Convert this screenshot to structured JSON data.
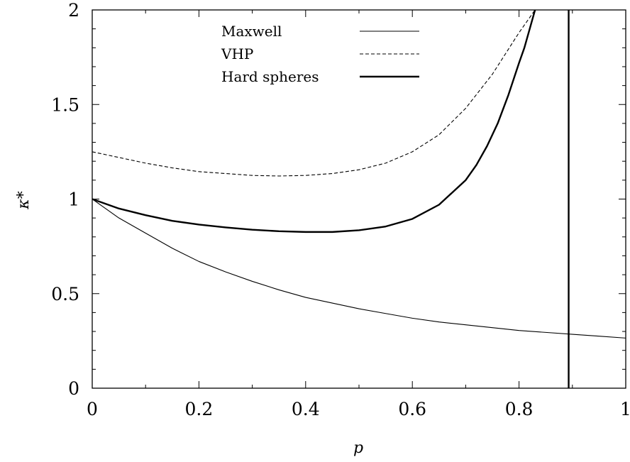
{
  "chart_data": {
    "type": "line",
    "title": "",
    "xlabel": "p",
    "ylabel": "κ*",
    "xlim": [
      0,
      1
    ],
    "ylim": [
      0,
      2
    ],
    "x_ticks": [
      "0",
      "0.2",
      "0.4",
      "0.6",
      "0.8",
      "1"
    ],
    "y_ticks": [
      "0",
      "0.5",
      "1",
      "1.5",
      "2"
    ],
    "x_tick_values": [
      0,
      0.2,
      0.4,
      0.6,
      0.8,
      1
    ],
    "y_tick_values": [
      0,
      0.5,
      1,
      1.5,
      2
    ],
    "legend_position": "top-center",
    "grid": false,
    "series": [
      {
        "name": "Maxwell",
        "style": "solid-thin",
        "color": "#000000",
        "x": [
          0,
          0.02,
          0.05,
          0.1,
          0.15,
          0.2,
          0.25,
          0.3,
          0.35,
          0.4,
          0.45,
          0.5,
          0.55,
          0.6,
          0.65,
          0.7,
          0.75,
          0.8,
          0.85,
          0.9,
          0.95,
          1.0
        ],
        "y": [
          1.0,
          0.96,
          0.9,
          0.82,
          0.74,
          0.67,
          0.615,
          0.565,
          0.52,
          0.48,
          0.45,
          0.42,
          0.395,
          0.37,
          0.35,
          0.335,
          0.32,
          0.305,
          0.295,
          0.285,
          0.275,
          0.265
        ]
      },
      {
        "name": "VHP",
        "style": "dashed",
        "color": "#000000",
        "x": [
          0,
          0.05,
          0.1,
          0.15,
          0.2,
          0.25,
          0.3,
          0.35,
          0.4,
          0.45,
          0.5,
          0.55,
          0.6,
          0.65,
          0.7,
          0.75,
          0.8,
          0.83
        ],
        "y": [
          1.25,
          1.22,
          1.19,
          1.165,
          1.145,
          1.135,
          1.125,
          1.122,
          1.125,
          1.135,
          1.155,
          1.19,
          1.25,
          1.34,
          1.48,
          1.66,
          1.88,
          2.0
        ]
      },
      {
        "name": "Hard spheres",
        "style": "solid-thick",
        "color": "#000000",
        "x": [
          0,
          0.05,
          0.1,
          0.15,
          0.2,
          0.25,
          0.3,
          0.35,
          0.4,
          0.45,
          0.5,
          0.55,
          0.6,
          0.65,
          0.7,
          0.72,
          0.74,
          0.76,
          0.78,
          0.8,
          0.81,
          0.82,
          0.83
        ],
        "y": [
          1.0,
          0.95,
          0.915,
          0.885,
          0.865,
          0.85,
          0.838,
          0.83,
          0.826,
          0.826,
          0.835,
          0.855,
          0.895,
          0.97,
          1.1,
          1.18,
          1.28,
          1.4,
          1.55,
          1.72,
          1.8,
          1.9,
          2.0
        ]
      }
    ],
    "vertical_lines": [
      {
        "x": 0.893,
        "style": "solid-thick",
        "color": "#000000"
      }
    ]
  }
}
